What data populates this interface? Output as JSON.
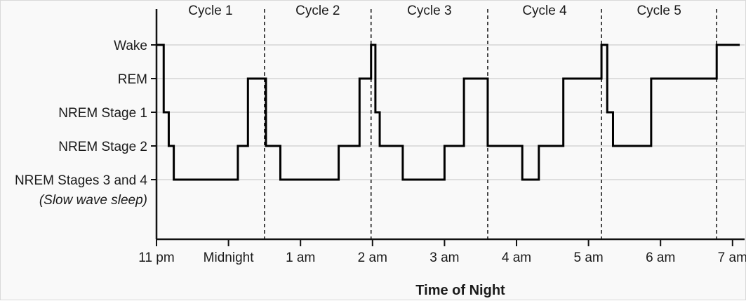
{
  "chart_data": {
    "type": "line",
    "title": "",
    "xlabel": "Time of Night",
    "ylabel": "",
    "x_ticks": [
      {
        "label": "11 pm",
        "hour": 0
      },
      {
        "label": "Midnight",
        "hour": 1
      },
      {
        "label": "1 am",
        "hour": 2
      },
      {
        "label": "2 am",
        "hour": 3
      },
      {
        "label": "3 am",
        "hour": 4
      },
      {
        "label": "4 am",
        "hour": 5
      },
      {
        "label": "5 am",
        "hour": 6
      },
      {
        "label": "6 am",
        "hour": 7
      },
      {
        "label": "7 am",
        "hour": 8
      }
    ],
    "xlim": [
      0,
      8.15
    ],
    "y_levels": [
      {
        "label": "Wake",
        "level": 4
      },
      {
        "label": "REM",
        "level": 3
      },
      {
        "label": "NREM Stage 1",
        "level": 2
      },
      {
        "label": "NREM Stage 2",
        "level": 1
      },
      {
        "label": "NREM Stages 3 and 4",
        "sublabel": "(Slow wave sleep)",
        "level": 0
      }
    ],
    "ylim": [
      -1.8,
      5
    ],
    "grid": true,
    "cycles": [
      {
        "label": "Cycle 1",
        "start": 0,
        "end": 1.5
      },
      {
        "label": "Cycle 2",
        "start": 1.5,
        "end": 2.98
      },
      {
        "label": "Cycle 3",
        "start": 2.98,
        "end": 4.6
      },
      {
        "label": "Cycle 4",
        "start": 4.6,
        "end": 6.18
      },
      {
        "label": "Cycle 5",
        "start": 6.18,
        "end": 7.78
      }
    ],
    "series": [
      {
        "color": "#000000",
        "steps": [
          [
            0,
            4
          ],
          [
            0.1,
            2
          ],
          [
            0.17,
            1
          ],
          [
            0.24,
            0
          ],
          [
            1.13,
            1
          ],
          [
            1.27,
            3
          ],
          [
            1.52,
            1
          ],
          [
            1.72,
            0
          ],
          [
            2.53,
            1
          ],
          [
            2.82,
            3
          ],
          [
            2.98,
            4
          ],
          [
            3.04,
            2
          ],
          [
            3.1,
            1
          ],
          [
            3.42,
            0
          ],
          [
            4.0,
            1
          ],
          [
            4.27,
            3
          ],
          [
            4.6,
            1
          ],
          [
            5.08,
            0
          ],
          [
            5.31,
            1
          ],
          [
            5.65,
            3
          ],
          [
            6.18,
            4
          ],
          [
            6.26,
            2
          ],
          [
            6.34,
            1
          ],
          [
            6.87,
            3
          ],
          [
            7.78,
            4
          ]
        ],
        "end": 8.1
      }
    ]
  }
}
